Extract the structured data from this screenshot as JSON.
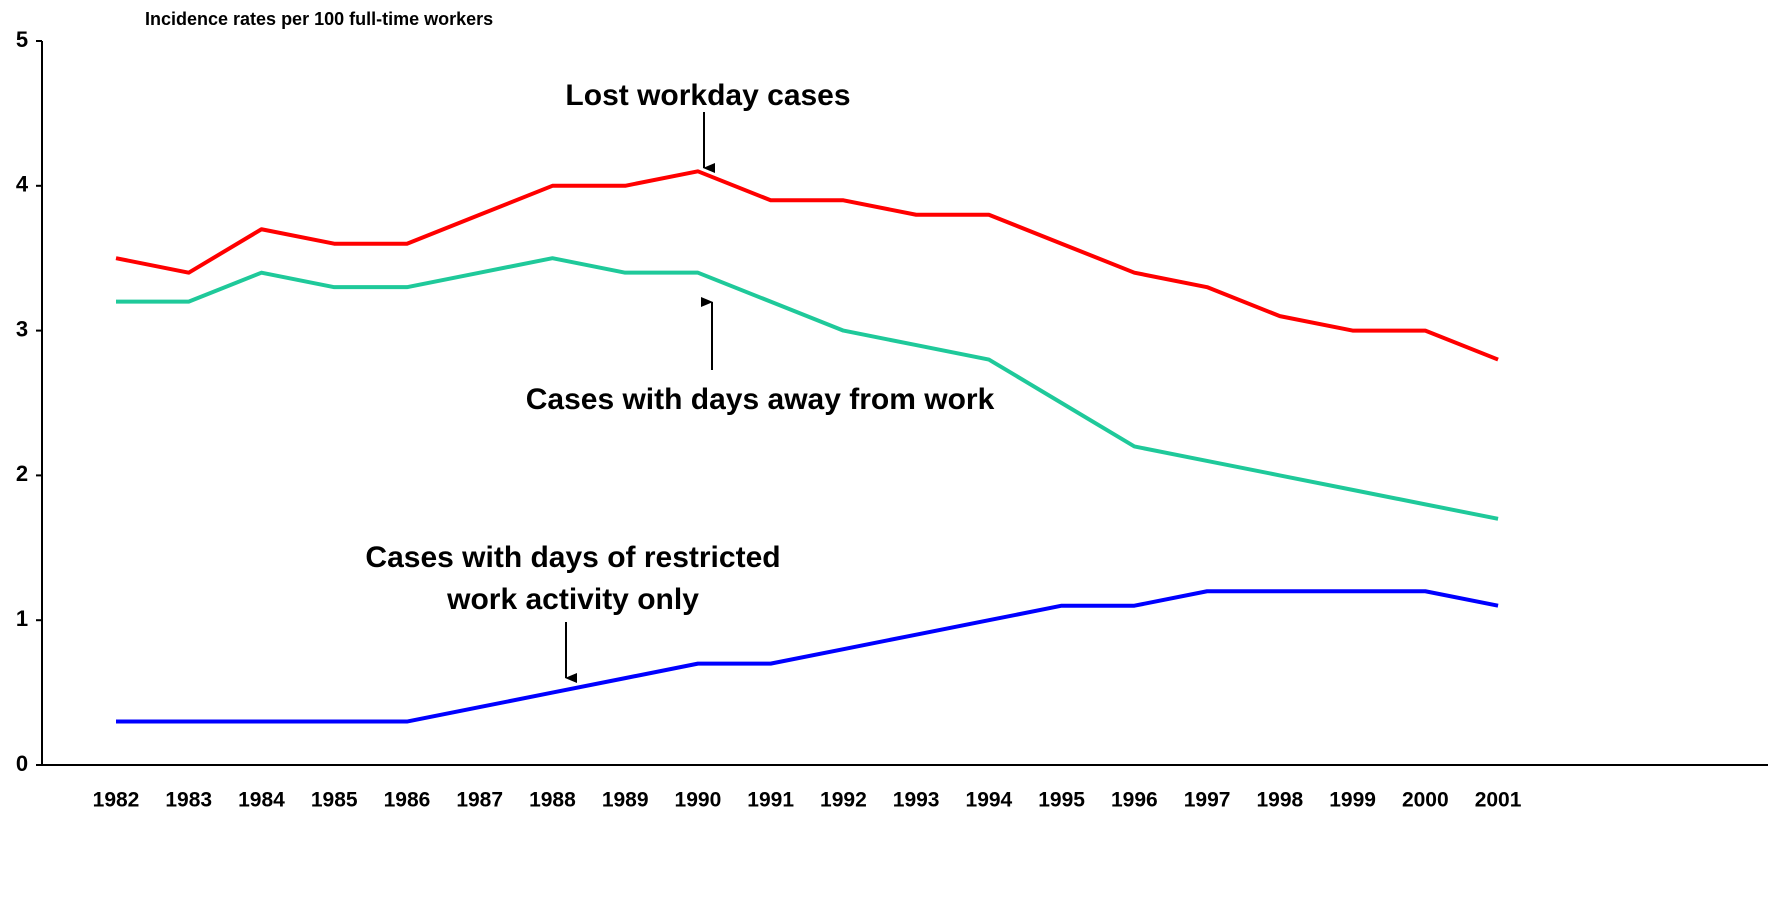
{
  "chart_data": {
    "type": "line",
    "title": "Incidence rates per 100 full-time workers",
    "categories": [
      "1982",
      "1983",
      "1984",
      "1985",
      "1986",
      "1987",
      "1988",
      "1989",
      "1990",
      "1991",
      "1992",
      "1993",
      "1994",
      "1995",
      "1996",
      "1997",
      "1998",
      "1999",
      "2000",
      "2001"
    ],
    "series": [
      {
        "name": "Lost workday cases",
        "color": "#ff0000",
        "values": [
          3.5,
          3.4,
          3.7,
          3.6,
          3.6,
          3.8,
          4.0,
          4.0,
          4.1,
          3.9,
          3.9,
          3.8,
          3.8,
          3.6,
          3.4,
          3.3,
          3.1,
          3.0,
          3.0,
          2.8
        ]
      },
      {
        "name": "Cases with days away from work",
        "color": "#1fc99a",
        "values": [
          3.2,
          3.2,
          3.4,
          3.3,
          3.3,
          3.4,
          3.5,
          3.4,
          3.4,
          3.2,
          3.0,
          2.9,
          2.8,
          2.5,
          2.2,
          2.1,
          2.0,
          1.9,
          1.8,
          1.7
        ]
      },
      {
        "name": "Cases with days of restricted work activity only",
        "color": "#0000ff",
        "values": [
          0.3,
          0.3,
          0.3,
          0.3,
          0.3,
          0.4,
          0.5,
          0.6,
          0.7,
          0.7,
          0.8,
          0.9,
          1.0,
          1.1,
          1.1,
          1.2,
          1.2,
          1.2,
          1.2,
          1.1
        ]
      }
    ],
    "ylim": [
      0,
      5
    ],
    "yticks": [
      0,
      1,
      2,
      3,
      4,
      5
    ],
    "grid": false
  }
}
